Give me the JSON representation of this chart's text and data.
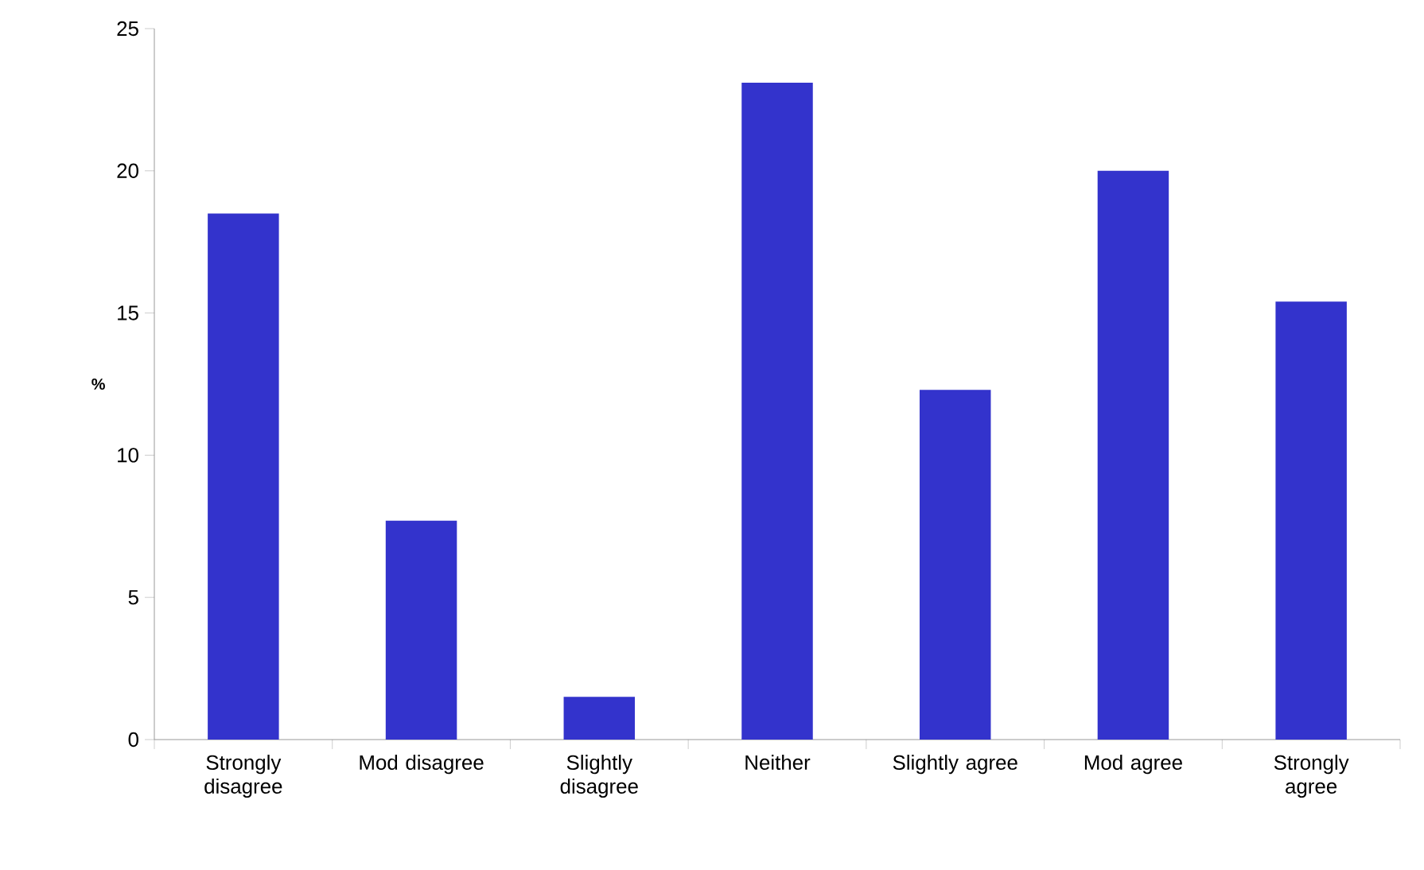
{
  "chart_data": {
    "type": "bar",
    "ylabel": "%",
    "categories": [
      "Strongly disagree",
      "Mod disagree",
      "Slightly disagree",
      "Neither",
      "Slightly agree",
      "Mod agree",
      "Strongly agree"
    ],
    "values": [
      18.5,
      7.7,
      1.5,
      23.1,
      12.3,
      20.0,
      15.4
    ],
    "color": "#3333cc",
    "ylim": [
      0,
      25
    ],
    "yticks": [
      0,
      5,
      10,
      15,
      20,
      25
    ],
    "grid": false
  }
}
